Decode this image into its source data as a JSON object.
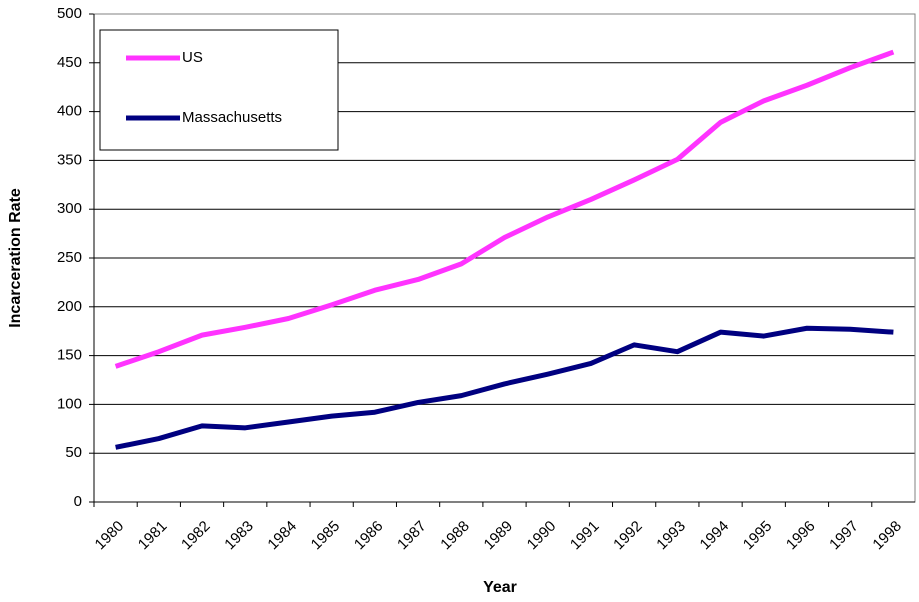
{
  "chart_data": {
    "type": "line",
    "x_label": "Year",
    "y_label": "Incarceration Rate",
    "categories": [
      "1980",
      "1981",
      "1982",
      "1983",
      "1984",
      "1985",
      "1986",
      "1987",
      "1988",
      "1989",
      "1990",
      "1991",
      "1992",
      "1993",
      "1994",
      "1995",
      "1996",
      "1997",
      "1998"
    ],
    "series": [
      {
        "name": "US",
        "color": "#ff33ff",
        "values": [
          139,
          154,
          171,
          179,
          188,
          202,
          217,
          228,
          244,
          271,
          292,
          310,
          330,
          351,
          389,
          411,
          427,
          445,
          461
        ]
      },
      {
        "name": "Massachusetts",
        "color": "#000080",
        "values": [
          56,
          65,
          78,
          76,
          82,
          88,
          92,
          102,
          109,
          121,
          131,
          142,
          161,
          154,
          174,
          170,
          178,
          177,
          174
        ]
      }
    ],
    "ylim": [
      0,
      500
    ],
    "yticks": [
      0,
      50,
      100,
      150,
      200,
      250,
      300,
      350,
      400,
      450,
      500
    ],
    "grid": true,
    "legend": "upper left"
  }
}
